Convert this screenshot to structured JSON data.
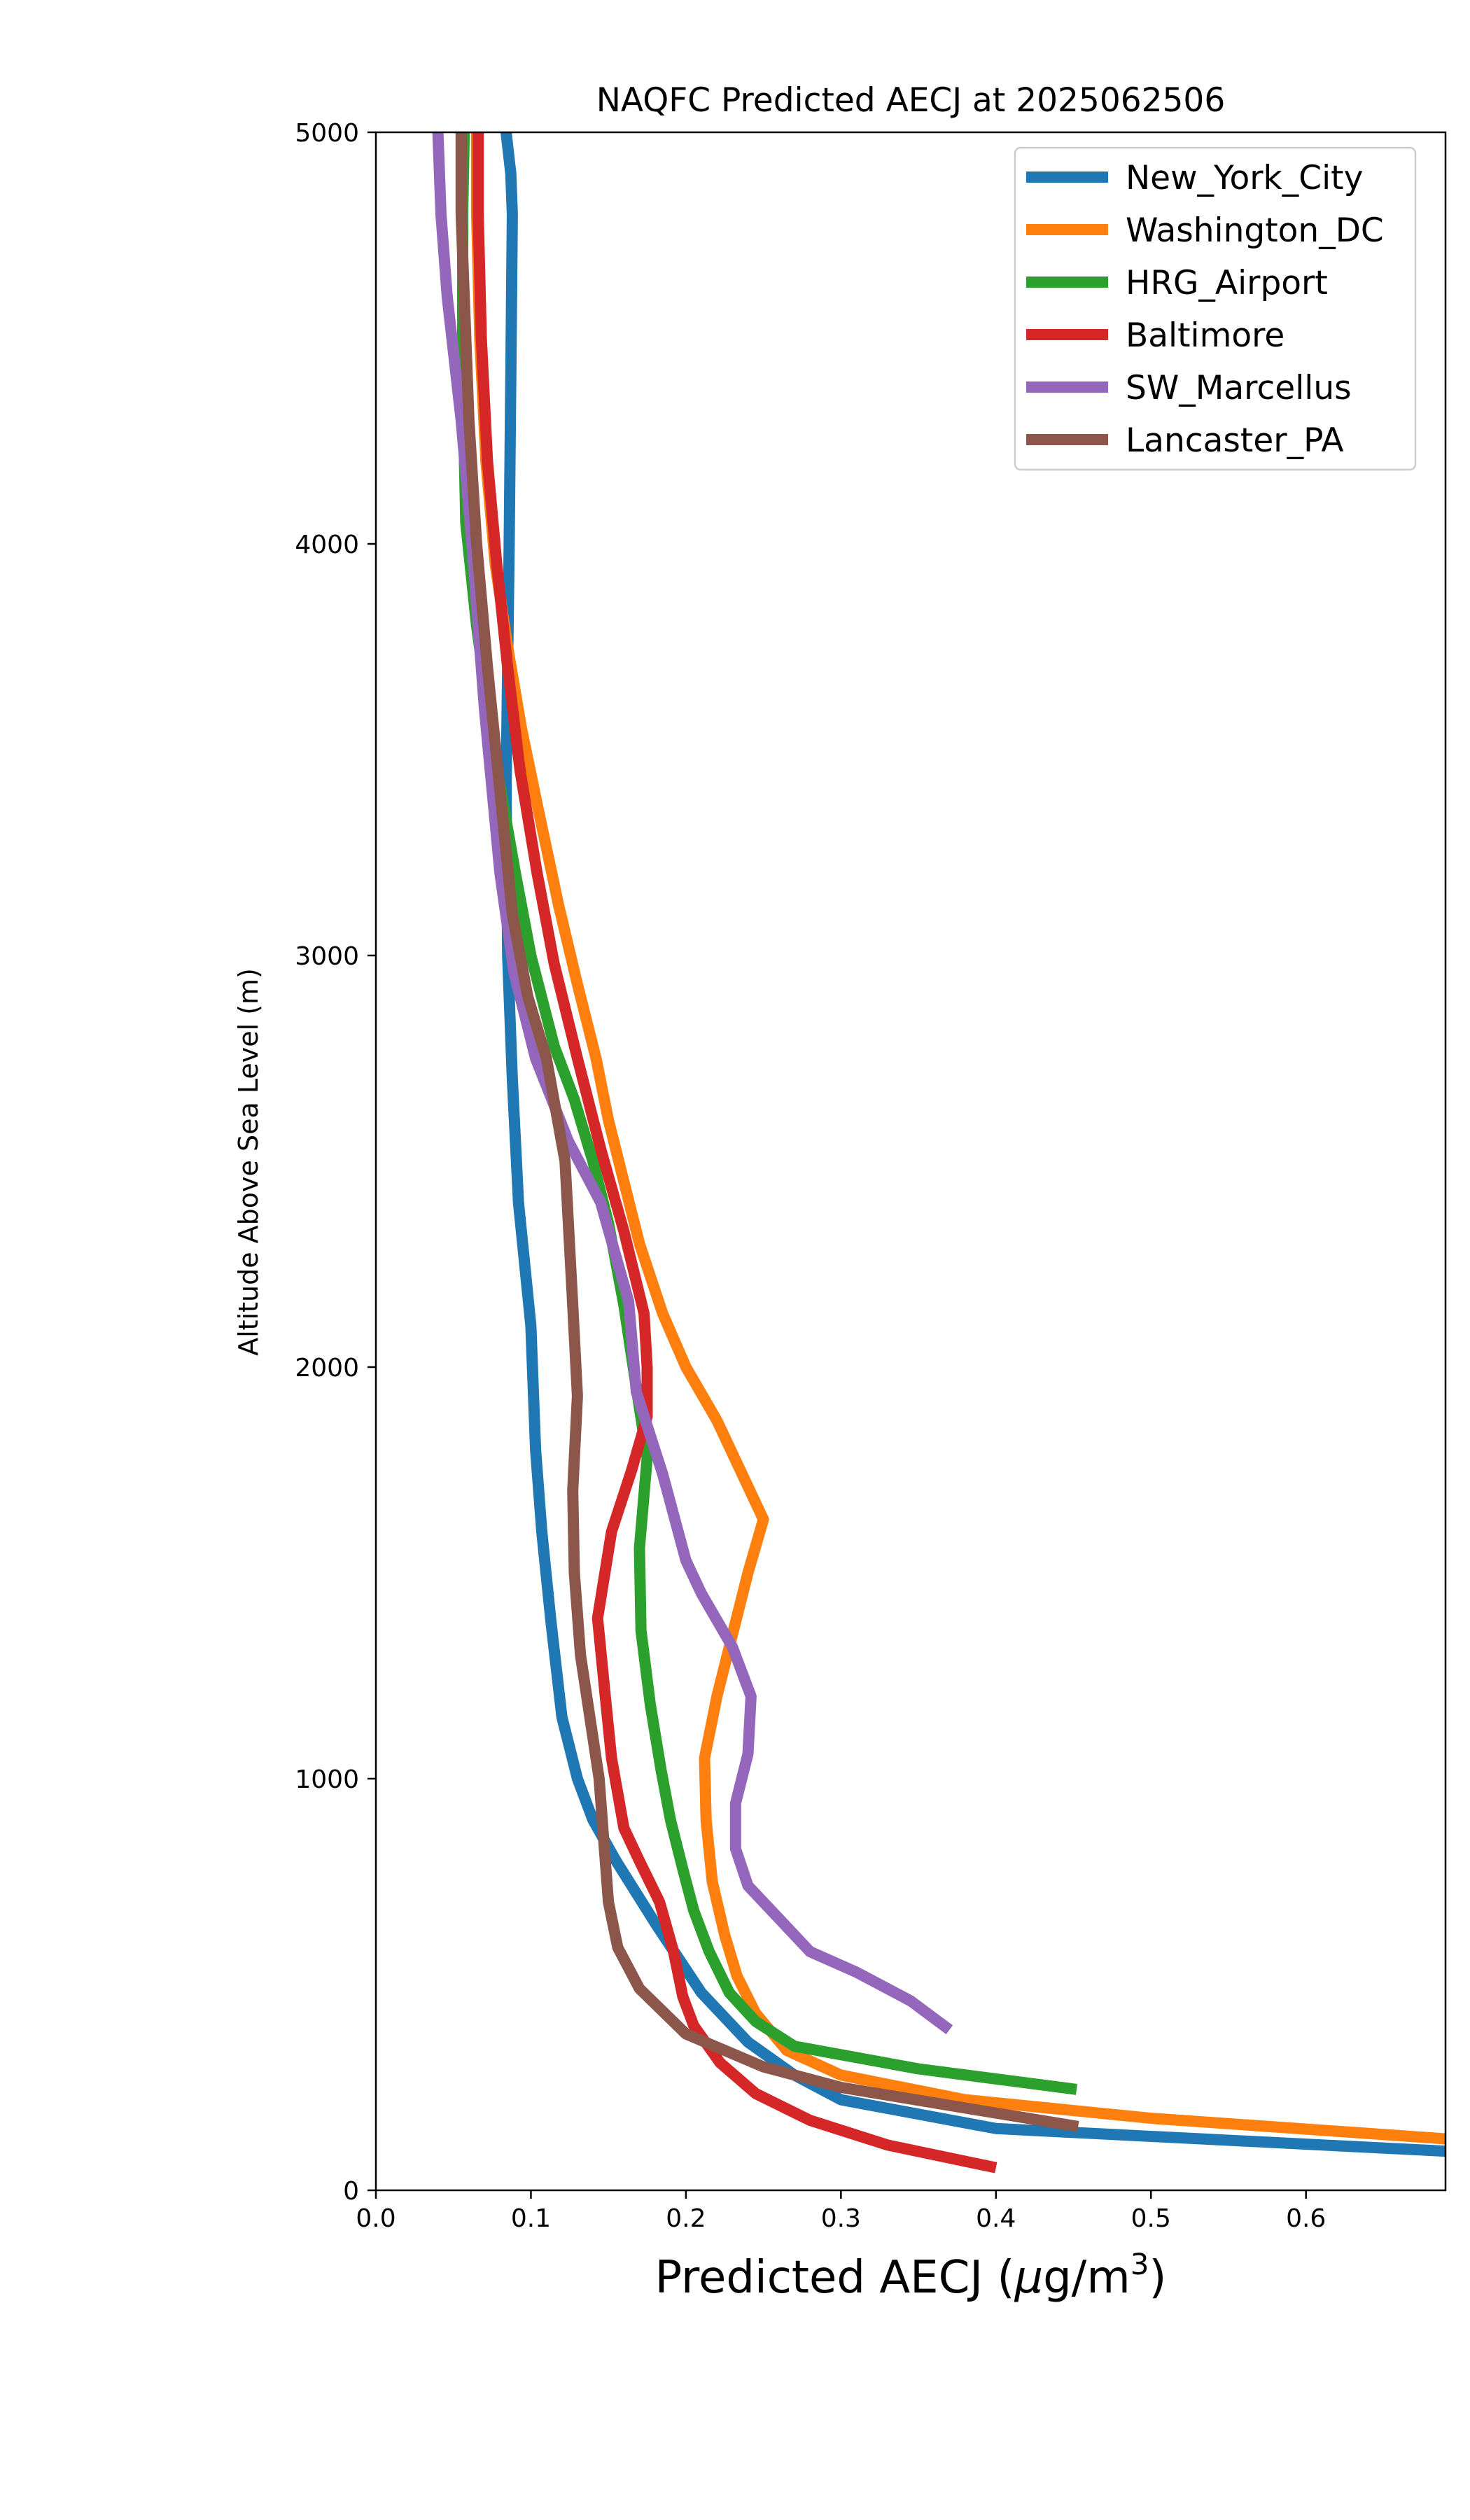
{
  "chart_data": {
    "type": "line",
    "title": "NAQFC Predicted AECJ at 2025062506",
    "xlabel_text": "Predicted AECJ (",
    "xlabel_mu": "μ",
    "xlabel_unit": "g/m",
    "xlabel_sup": "3",
    "xlabel_close": ")",
    "ylabel": "Altitude Above Sea Level (m)",
    "xlim": [
      0,
      0.69
    ],
    "ylim": [
      0,
      5000
    ],
    "xticks": [
      0.0,
      0.1,
      0.2,
      0.3,
      0.4,
      0.5,
      0.6
    ],
    "xtick_labels": [
      "0.0",
      "0.1",
      "0.2",
      "0.3",
      "0.4",
      "0.5",
      "0.6"
    ],
    "yticks": [
      0,
      1000,
      2000,
      3000,
      4000,
      5000
    ],
    "ytick_labels": [
      "0",
      "1000",
      "2000",
      "3000",
      "4000",
      "5000"
    ],
    "grid": false,
    "legend_position": "top-right",
    "series": [
      {
        "name": "New_York_City",
        "color": "#1f77b4",
        "points": [
          [
            0.69,
            95
          ],
          [
            0.4,
            150
          ],
          [
            0.3,
            220
          ],
          [
            0.27,
            280
          ],
          [
            0.24,
            360
          ],
          [
            0.21,
            480
          ],
          [
            0.18,
            650
          ],
          [
            0.155,
            800
          ],
          [
            0.14,
            900
          ],
          [
            0.13,
            1000
          ],
          [
            0.12,
            1150
          ],
          [
            0.113,
            1380
          ],
          [
            0.107,
            1600
          ],
          [
            0.103,
            1800
          ],
          [
            0.1,
            2100
          ],
          [
            0.092,
            2400
          ],
          [
            0.088,
            2700
          ],
          [
            0.085,
            3000
          ],
          [
            0.084,
            3400
          ],
          [
            0.086,
            4000
          ],
          [
            0.087,
            4400
          ],
          [
            0.088,
            4800
          ],
          [
            0.087,
            4900
          ],
          [
            0.084,
            5000
          ]
        ]
      },
      {
        "name": "Washington_DC",
        "color": "#ff7f0e",
        "points": [
          [
            0.69,
            125
          ],
          [
            0.5,
            175
          ],
          [
            0.38,
            220
          ],
          [
            0.3,
            280
          ],
          [
            0.265,
            340
          ],
          [
            0.245,
            430
          ],
          [
            0.233,
            520
          ],
          [
            0.225,
            620
          ],
          [
            0.217,
            750
          ],
          [
            0.213,
            900
          ],
          [
            0.212,
            1050
          ],
          [
            0.22,
            1200
          ],
          [
            0.23,
            1350
          ],
          [
            0.24,
            1500
          ],
          [
            0.25,
            1630
          ],
          [
            0.235,
            1750
          ],
          [
            0.22,
            1870
          ],
          [
            0.2,
            2000
          ],
          [
            0.185,
            2130
          ],
          [
            0.17,
            2300
          ],
          [
            0.16,
            2450
          ],
          [
            0.15,
            2600
          ],
          [
            0.142,
            2750
          ],
          [
            0.13,
            2930
          ],
          [
            0.118,
            3120
          ],
          [
            0.105,
            3350
          ],
          [
            0.094,
            3550
          ],
          [
            0.085,
            3750
          ],
          [
            0.077,
            3950
          ],
          [
            0.071,
            4200
          ],
          [
            0.067,
            4500
          ],
          [
            0.065,
            4800
          ],
          [
            0.065,
            5000
          ]
        ]
      },
      {
        "name": "HRG_Airport",
        "color": "#2ca02c",
        "points": [
          [
            0.452,
            245
          ],
          [
            0.35,
            295
          ],
          [
            0.27,
            350
          ],
          [
            0.245,
            410
          ],
          [
            0.228,
            480
          ],
          [
            0.215,
            580
          ],
          [
            0.205,
            680
          ],
          [
            0.198,
            780
          ],
          [
            0.19,
            900
          ],
          [
            0.184,
            1020
          ],
          [
            0.177,
            1180
          ],
          [
            0.171,
            1360
          ],
          [
            0.17,
            1560
          ],
          [
            0.175,
            1780
          ],
          [
            0.168,
            1950
          ],
          [
            0.16,
            2150
          ],
          [
            0.15,
            2350
          ],
          [
            0.14,
            2500
          ],
          [
            0.128,
            2650
          ],
          [
            0.115,
            2780
          ],
          [
            0.1,
            3000
          ],
          [
            0.09,
            3200
          ],
          [
            0.076,
            3500
          ],
          [
            0.065,
            3800
          ],
          [
            0.058,
            4050
          ],
          [
            0.056,
            4400
          ],
          [
            0.056,
            4800
          ],
          [
            0.057,
            5000
          ]
        ]
      },
      {
        "name": "Baltimore",
        "color": "#d62728",
        "points": [
          [
            0.4,
            55
          ],
          [
            0.33,
            110
          ],
          [
            0.28,
            170
          ],
          [
            0.245,
            235
          ],
          [
            0.222,
            310
          ],
          [
            0.205,
            400
          ],
          [
            0.198,
            470
          ],
          [
            0.192,
            580
          ],
          [
            0.183,
            700
          ],
          [
            0.17,
            800
          ],
          [
            0.16,
            880
          ],
          [
            0.152,
            1050
          ],
          [
            0.148,
            1200
          ],
          [
            0.143,
            1390
          ],
          [
            0.152,
            1600
          ],
          [
            0.165,
            1750
          ],
          [
            0.175,
            1880
          ],
          [
            0.175,
            2000
          ],
          [
            0.173,
            2130
          ],
          [
            0.16,
            2330
          ],
          [
            0.145,
            2530
          ],
          [
            0.13,
            2750
          ],
          [
            0.115,
            2980
          ],
          [
            0.104,
            3200
          ],
          [
            0.093,
            3450
          ],
          [
            0.085,
            3700
          ],
          [
            0.078,
            3950
          ],
          [
            0.072,
            4200
          ],
          [
            0.068,
            4500
          ],
          [
            0.066,
            4800
          ],
          [
            0.066,
            5000
          ]
        ]
      },
      {
        "name": "SW_Marcellus",
        "color": "#9467bd",
        "points": [
          [
            0.37,
            390
          ],
          [
            0.345,
            460
          ],
          [
            0.31,
            530
          ],
          [
            0.28,
            580
          ],
          [
            0.26,
            660
          ],
          [
            0.24,
            740
          ],
          [
            0.232,
            830
          ],
          [
            0.232,
            940
          ],
          [
            0.24,
            1060
          ],
          [
            0.242,
            1200
          ],
          [
            0.23,
            1320
          ],
          [
            0.21,
            1450
          ],
          [
            0.2,
            1530
          ],
          [
            0.185,
            1740
          ],
          [
            0.168,
            1940
          ],
          [
            0.163,
            2160
          ],
          [
            0.145,
            2400
          ],
          [
            0.124,
            2550
          ],
          [
            0.103,
            2750
          ],
          [
            0.089,
            2960
          ],
          [
            0.08,
            3200
          ],
          [
            0.07,
            3600
          ],
          [
            0.062,
            4000
          ],
          [
            0.055,
            4300
          ],
          [
            0.046,
            4600
          ],
          [
            0.042,
            4800
          ],
          [
            0.04,
            5000
          ]
        ]
      },
      {
        "name": "Lancaster_PA",
        "color": "#8c564b",
        "points": [
          [
            0.453,
            155
          ],
          [
            0.38,
            200
          ],
          [
            0.3,
            250
          ],
          [
            0.25,
            300
          ],
          [
            0.2,
            380
          ],
          [
            0.17,
            490
          ],
          [
            0.156,
            590
          ],
          [
            0.15,
            700
          ],
          [
            0.147,
            850
          ],
          [
            0.144,
            1000
          ],
          [
            0.138,
            1150
          ],
          [
            0.132,
            1300
          ],
          [
            0.128,
            1500
          ],
          [
            0.127,
            1700
          ],
          [
            0.13,
            1930
          ],
          [
            0.127,
            2150
          ],
          [
            0.122,
            2500
          ],
          [
            0.11,
            2750
          ],
          [
            0.098,
            2900
          ],
          [
            0.088,
            3100
          ],
          [
            0.08,
            3400
          ],
          [
            0.072,
            3700
          ],
          [
            0.065,
            4000
          ],
          [
            0.06,
            4300
          ],
          [
            0.057,
            4600
          ],
          [
            0.055,
            4800
          ],
          [
            0.055,
            5000
          ]
        ]
      }
    ]
  }
}
